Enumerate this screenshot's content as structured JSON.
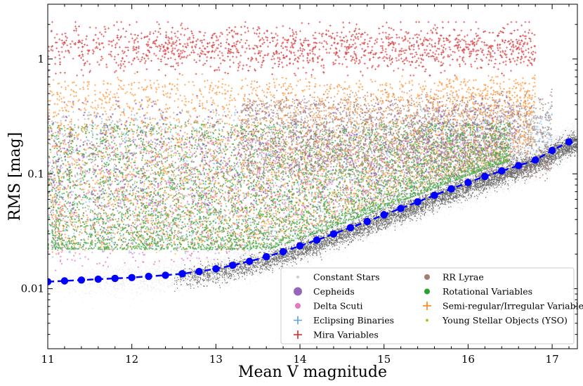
{
  "chart_data": {
    "type": "scatter",
    "xlabel": "Mean V magnitude",
    "ylabel": "RMS [mag]",
    "xlim": [
      11,
      17.3
    ],
    "ylim": [
      0.003,
      3.0
    ],
    "yscale": "log",
    "x_ticks": [
      "11",
      "12",
      "13",
      "14",
      "15",
      "16",
      "17"
    ],
    "y_ticks": [
      {
        "value": 0.01,
        "label": "0.01"
      },
      {
        "value": 0.1,
        "label": "0.1"
      },
      {
        "value": 1,
        "label": "1"
      }
    ],
    "legend_position": "lower-right",
    "series": [
      {
        "name": "Constant Stars",
        "marker": "dot",
        "color": "#000000",
        "x_range": [
          11,
          17.3
        ],
        "rms_floor": 0.01
      },
      {
        "name": "Cepheids",
        "marker": "circle",
        "color": "#9467bd",
        "x_range": [
          11,
          16.8
        ],
        "y_range": [
          0.05,
          0.5
        ]
      },
      {
        "name": "Delta Scuti",
        "marker": "circle",
        "color": "#e377c2",
        "x_range": [
          11,
          16.5
        ],
        "y_range": [
          0.015,
          0.3
        ]
      },
      {
        "name": "Eclipsing Binaries",
        "marker": "plus",
        "color": "#5fa2d0",
        "x_range": [
          11,
          17.0
        ],
        "y_range": [
          0.02,
          0.5
        ]
      },
      {
        "name": "Mira Variables",
        "marker": "plus",
        "color": "#d62728",
        "x_range": [
          11,
          16.8
        ],
        "y_range": [
          0.7,
          2.0
        ]
      },
      {
        "name": "RR Lyrae",
        "marker": "circle",
        "color": "#a67c72",
        "x_range": [
          13.5,
          17.0
        ],
        "y_range": [
          0.08,
          0.5
        ]
      },
      {
        "name": "Rotational Variables",
        "marker": "circle",
        "color": "#2ca02c",
        "x_range": [
          11,
          16.5
        ],
        "y_range": [
          0.02,
          0.3
        ]
      },
      {
        "name": "Semi-regular/Irregular Variables",
        "marker": "plus",
        "color": "#ff7f0e",
        "x_range": [
          11,
          16.8
        ],
        "y_range": [
          0.02,
          0.6
        ]
      },
      {
        "name": "Young Stellar Objects (YSO)",
        "marker": "dot",
        "color": "#bcbd22",
        "x_range": [
          12,
          16.5
        ],
        "y_range": [
          0.02,
          0.2
        ]
      }
    ],
    "median_curve": {
      "color": "#0000ff",
      "x": [
        11.0,
        11.2,
        11.4,
        11.6,
        11.8,
        12.0,
        12.2,
        12.4,
        12.6,
        12.8,
        13.0,
        13.2,
        13.4,
        13.6,
        13.8,
        14.0,
        14.2,
        14.4,
        14.6,
        14.8,
        15.0,
        15.2,
        15.4,
        15.6,
        15.8,
        16.0,
        16.2,
        16.4,
        16.6,
        16.8,
        17.0,
        17.2
      ],
      "y": [
        0.0115,
        0.0117,
        0.0119,
        0.0121,
        0.0123,
        0.0125,
        0.0128,
        0.0131,
        0.0135,
        0.0141,
        0.0149,
        0.016,
        0.0173,
        0.019,
        0.021,
        0.0236,
        0.0265,
        0.03,
        0.034,
        0.0385,
        0.044,
        0.05,
        0.057,
        0.065,
        0.074,
        0.084,
        0.095,
        0.106,
        0.118,
        0.132,
        0.16,
        0.19
      ]
    }
  }
}
